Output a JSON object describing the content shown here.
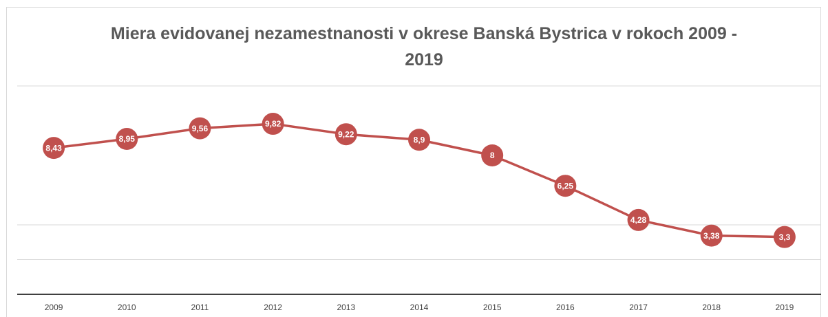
{
  "chart_data": {
    "type": "line",
    "title": "Miera evidovanej nezamestnanosti v okrese Banská Bystrica v rokoch 2009 - 2019",
    "categories": [
      "2009",
      "2010",
      "2011",
      "2012",
      "2013",
      "2014",
      "2015",
      "2016",
      "2017",
      "2018",
      "2019"
    ],
    "values": [
      8.43,
      8.95,
      9.56,
      9.82,
      9.22,
      8.9,
      8,
      6.25,
      4.28,
      3.38,
      3.3
    ],
    "value_labels": [
      "8,43",
      "8,95",
      "9,56",
      "9,82",
      "9,22",
      "8,9",
      "8",
      "6,25",
      "4,28",
      "3,38",
      "3,3"
    ],
    "color": "#c0504d",
    "ylim": [
      0,
      12
    ],
    "yticks": [
      0,
      2,
      4,
      12
    ],
    "grid": true
  }
}
